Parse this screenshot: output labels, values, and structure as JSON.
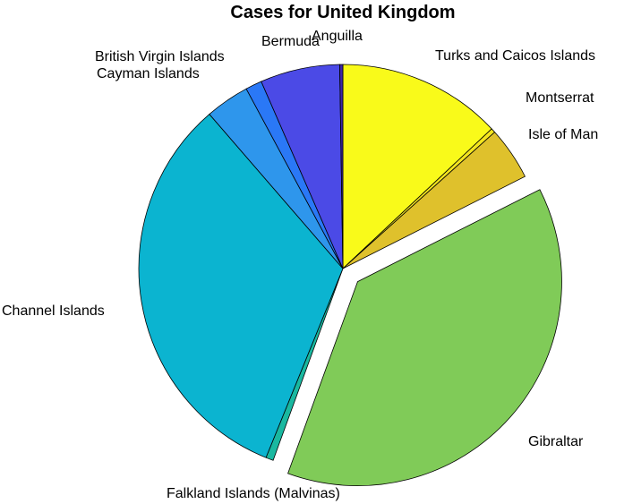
{
  "chart_data": {
    "type": "pie",
    "title": "Cases for United Kingdom",
    "start_angle_deg": 0,
    "direction": "clockwise",
    "slices": [
      {
        "label": "Turks and Caicos Islands",
        "value": 13.0,
        "color": "#f9fa1a",
        "exploded": false
      },
      {
        "label": "Montserrat",
        "value": 0.35,
        "color": "#f4e51e",
        "exploded": false
      },
      {
        "label": "Isle of Man",
        "value": 4.2,
        "color": "#dfc12c",
        "exploded": false
      },
      {
        "label": "Gibraltar",
        "value": 38.0,
        "color": "#80cb58",
        "exploded": true
      },
      {
        "label": "Falkland Islands (Malvinas)",
        "value": 0.6,
        "color": "#1ab8a0",
        "exploded": false
      },
      {
        "label": "Channel Islands",
        "value": 32.5,
        "color": "#0bb4d0",
        "exploded": false
      },
      {
        "label": "Cayman Islands",
        "value": 3.5,
        "color": "#2e96ec",
        "exploded": false
      },
      {
        "label": "British Virgin Islands",
        "value": 1.3,
        "color": "#2a78f6",
        "exploded": false
      },
      {
        "label": "Bermuda",
        "value": 6.3,
        "color": "#4b4ae6",
        "exploded": false
      },
      {
        "label": "Anguilla",
        "value": 0.25,
        "color": "#3e26a8",
        "exploded": false
      }
    ]
  }
}
